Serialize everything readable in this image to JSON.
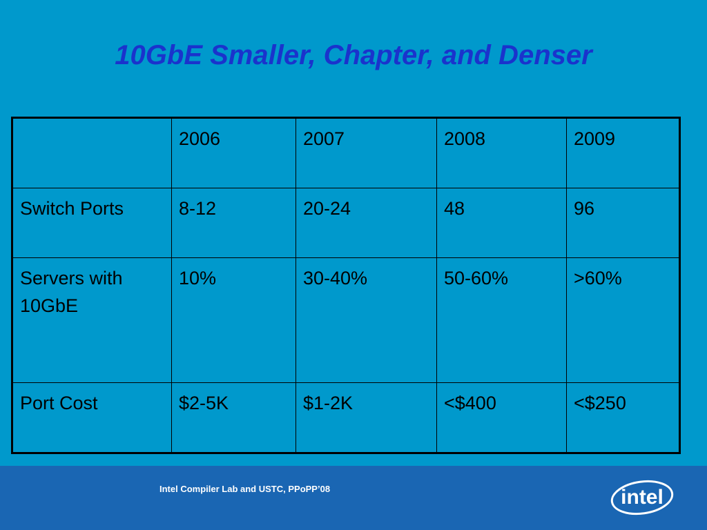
{
  "slide": {
    "title": "10GbE Smaller, Chapter, and Denser",
    "footer": "Intel Compiler Lab and USTC, PPoPP’08",
    "logo_text": "intel"
  },
  "table": {
    "header": [
      "",
      "2006",
      "2007",
      "2008",
      "2009"
    ],
    "rows": [
      [
        "Switch Ports",
        "8-12",
        "20-24",
        "48",
        "96"
      ],
      [
        "Servers with 10GbE",
        "10%",
        "30-40%",
        "50-60%",
        ">60%"
      ],
      [
        "Port Cost",
        "$2-5K",
        "$1-2K",
        "<$400",
        "<$250"
      ]
    ]
  },
  "colors": {
    "background": "#0099cc",
    "title": "#1a33cc",
    "footer_band": "#1a66b3",
    "table_border": "#000000"
  }
}
